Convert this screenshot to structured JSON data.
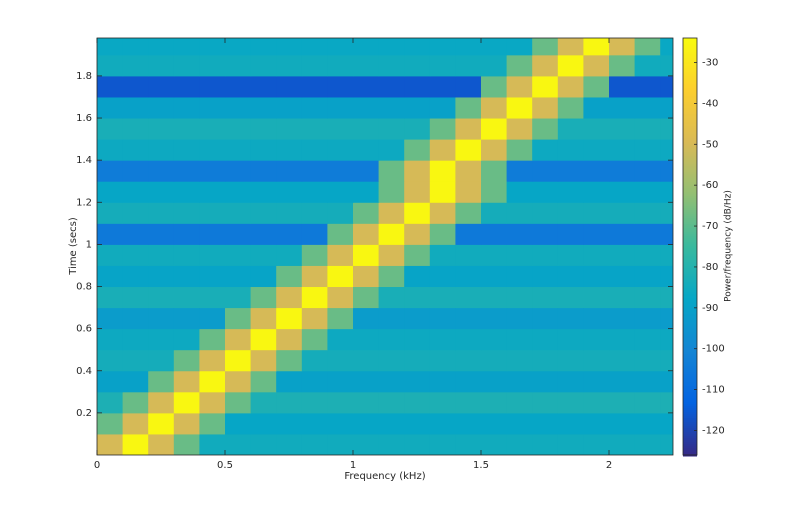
{
  "chart_data": {
    "type": "heatmap",
    "xlabel": "Frequency (kHz)",
    "ylabel": "Time (secs)",
    "colorbar_label": "Power/frequency (dB/Hz)",
    "colormap": "parula",
    "xlim": [
      0,
      2.25
    ],
    "ylim": [
      0,
      1.98
    ],
    "xticks": [
      0,
      0.5,
      1,
      1.5,
      2
    ],
    "yticks": [
      0.2,
      0.4,
      0.6,
      0.8,
      1,
      1.2,
      1.4,
      1.6,
      1.8
    ],
    "clim": [
      -126,
      -24
    ],
    "cticks": [
      -120,
      -110,
      -100,
      -90,
      -80,
      -70,
      -60,
      -50,
      -40,
      -30
    ],
    "x": [
      0.05,
      0.15,
      0.25,
      0.35,
      0.45,
      0.55,
      0.65,
      0.75,
      0.85,
      0.95,
      1.05,
      1.15,
      1.25,
      1.35,
      1.45,
      1.55,
      1.65,
      1.75,
      1.85,
      1.95,
      2.05,
      2.15,
      2.25
    ],
    "y": [
      0.05,
      0.15,
      0.25,
      0.35,
      0.45,
      0.55,
      0.65,
      0.75,
      0.85,
      0.95,
      1.05,
      1.15,
      1.25,
      1.35,
      1.45,
      1.55,
      1.65,
      1.75,
      1.85,
      1.95
    ],
    "z": [
      [
        -50,
        -25,
        -50,
        -68,
        -85,
        -85,
        -85,
        -85,
        -85,
        -85,
        -85,
        -85,
        -85,
        -85,
        -85,
        -85,
        -85,
        -85,
        -85,
        -85,
        -85,
        -85,
        -85
      ],
      [
        -68,
        -50,
        -25,
        -50,
        -68,
        -88,
        -88,
        -88,
        -88,
        -88,
        -88,
        -88,
        -88,
        -88,
        -88,
        -88,
        -88,
        -88,
        -88,
        -88,
        -88,
        -88,
        -88
      ],
      [
        -82,
        -68,
        -50,
        -25,
        -50,
        -68,
        -82,
        -82,
        -82,
        -82,
        -82,
        -82,
        -82,
        -82,
        -82,
        -82,
        -82,
        -82,
        -82,
        -82,
        -82,
        -82,
        -82
      ],
      [
        -90,
        -90,
        -68,
        -50,
        -25,
        -50,
        -68,
        -90,
        -90,
        -90,
        -90,
        -90,
        -90,
        -90,
        -90,
        -90,
        -90,
        -90,
        -90,
        -90,
        -90,
        -90,
        -90
      ],
      [
        -84,
        -84,
        -84,
        -68,
        -50,
        -25,
        -50,
        -68,
        -84,
        -84,
        -84,
        -84,
        -84,
        -84,
        -84,
        -84,
        -84,
        -84,
        -84,
        -84,
        -84,
        -84,
        -84
      ],
      [
        -86,
        -86,
        -86,
        -86,
        -68,
        -50,
        -25,
        -50,
        -68,
        -86,
        -86,
        -86,
        -86,
        -86,
        -86,
        -86,
        -86,
        -86,
        -86,
        -86,
        -86,
        -86,
        -86
      ],
      [
        -92,
        -92,
        -92,
        -92,
        -92,
        -68,
        -50,
        -25,
        -50,
        -68,
        -92,
        -92,
        -92,
        -92,
        -92,
        -92,
        -92,
        -92,
        -92,
        -92,
        -92,
        -92,
        -92
      ],
      [
        -83,
        -83,
        -83,
        -83,
        -83,
        -83,
        -68,
        -50,
        -25,
        -50,
        -68,
        -83,
        -83,
        -83,
        -83,
        -83,
        -83,
        -83,
        -83,
        -83,
        -83,
        -83,
        -83
      ],
      [
        -89,
        -89,
        -89,
        -89,
        -89,
        -89,
        -89,
        -68,
        -50,
        -25,
        -50,
        -68,
        -89,
        -89,
        -89,
        -89,
        -89,
        -89,
        -89,
        -89,
        -89,
        -89,
        -89
      ],
      [
        -85,
        -85,
        -85,
        -85,
        -85,
        -85,
        -85,
        -85,
        -68,
        -50,
        -25,
        -50,
        -68,
        -85,
        -85,
        -85,
        -85,
        -85,
        -85,
        -85,
        -85,
        -85,
        -85
      ],
      [
        -105,
        -105,
        -105,
        -105,
        -105,
        -105,
        -105,
        -105,
        -105,
        -68,
        -50,
        -25,
        -50,
        -68,
        -105,
        -105,
        -105,
        -105,
        -105,
        -105,
        -105,
        -105,
        -105
      ],
      [
        -84,
        -84,
        -84,
        -84,
        -84,
        -84,
        -84,
        -84,
        -84,
        -84,
        -68,
        -50,
        -25,
        -50,
        -68,
        -84,
        -84,
        -84,
        -84,
        -84,
        -84,
        -84,
        -84
      ],
      [
        -88,
        -88,
        -88,
        -88,
        -88,
        -88,
        -88,
        -88,
        -88,
        -88,
        -88,
        -68,
        -50,
        -25,
        -50,
        -68,
        -88,
        -88,
        -88,
        -88,
        -88,
        -88,
        -88
      ],
      [
        -104,
        -104,
        -104,
        -104,
        -104,
        -104,
        -104,
        -104,
        -104,
        -104,
        -104,
        -68,
        -50,
        -25,
        -50,
        -68,
        -104,
        -104,
        -104,
        -104,
        -104,
        -104,
        -104
      ],
      [
        -86,
        -86,
        -86,
        -86,
        -86,
        -86,
        -86,
        -86,
        -86,
        -86,
        -86,
        -86,
        -68,
        -50,
        -25,
        -50,
        -68,
        -86,
        -86,
        -86,
        -86,
        -86,
        -86
      ],
      [
        -83,
        -83,
        -83,
        -83,
        -83,
        -83,
        -83,
        -83,
        -83,
        -83,
        -83,
        -83,
        -83,
        -68,
        -50,
        -25,
        -50,
        -68,
        -83,
        -83,
        -83,
        -83,
        -83
      ],
      [
        -90,
        -90,
        -90,
        -90,
        -90,
        -90,
        -90,
        -90,
        -90,
        -90,
        -90,
        -90,
        -90,
        -90,
        -68,
        -50,
        -25,
        -50,
        -68,
        -90,
        -90,
        -90,
        -90
      ],
      [
        -116,
        -116,
        -116,
        -116,
        -116,
        -116,
        -116,
        -116,
        -116,
        -116,
        -116,
        -116,
        -116,
        -116,
        -116,
        -68,
        -50,
        -25,
        -50,
        -68,
        -116,
        -116,
        -116
      ],
      [
        -85,
        -85,
        -85,
        -85,
        -85,
        -85,
        -85,
        -85,
        -85,
        -85,
        -85,
        -85,
        -85,
        -85,
        -85,
        -85,
        -68,
        -50,
        -25,
        -50,
        -68,
        -85,
        -85
      ],
      [
        -87,
        -87,
        -87,
        -87,
        -87,
        -87,
        -87,
        -87,
        -87,
        -87,
        -87,
        -87,
        -87,
        -87,
        -87,
        -87,
        -87,
        -68,
        -50,
        -25,
        -50,
        -68,
        -87
      ]
    ]
  }
}
